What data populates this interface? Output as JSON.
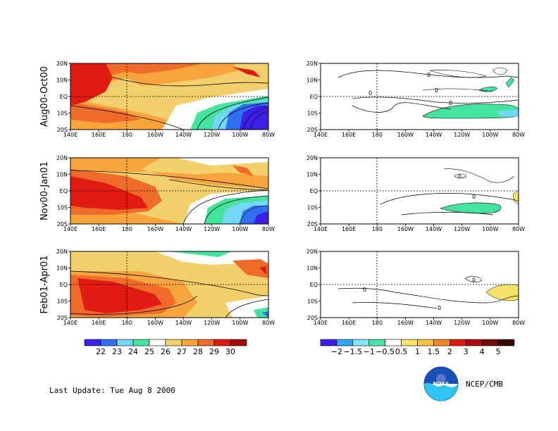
{
  "x_ticks": [
    "140E",
    "160E",
    "180",
    "160W",
    "140W",
    "120W",
    "100W",
    "80W"
  ],
  "y_ticks": [
    "20N",
    "10N",
    "EQ",
    "10S",
    "20S"
  ],
  "rows": [
    {
      "label": "Aug00-Oct00"
    },
    {
      "label": "Nov00-Jan01"
    },
    {
      "label": "Feb01-Apr01"
    }
  ],
  "contour_labels": [
    "0"
  ],
  "colorbar_left": {
    "labels": [
      "22",
      "23",
      "24",
      "25",
      "26",
      "27",
      "28",
      "29",
      "30"
    ],
    "colors": [
      "#3b1fe6",
      "#2f6ff0",
      "#73d7f8",
      "#44e39e",
      "#ffffff",
      "#f3d06c",
      "#f7a43c",
      "#ee6b2a",
      "#e01b12",
      "#a60c0c"
    ]
  },
  "colorbar_right": {
    "labels": [
      "−2",
      "−1.5",
      "−1",
      "−0.5",
      "0.5",
      "1",
      "1.5",
      "2",
      "3",
      "4",
      "5"
    ],
    "colors": [
      "#3b1fe6",
      "#2fa6f0",
      "#86e6fa",
      "#49e3a5",
      "#ffffff",
      "#f7e26a",
      "#f5c046",
      "#f0862c",
      "#e01b12",
      "#a80c0c",
      "#700a0a",
      "#3a0606"
    ]
  },
  "footer": {
    "last_update": "Last Update:  Tue Aug 8 2000",
    "agency": "NCEP/CMB"
  },
  "logo_text": "NOAA"
}
